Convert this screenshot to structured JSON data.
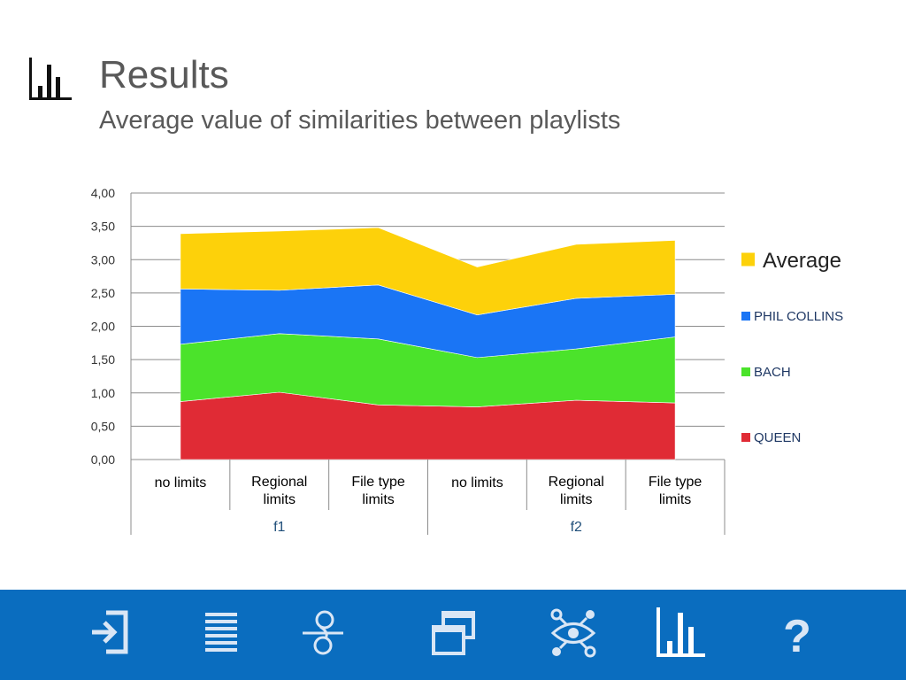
{
  "header": {
    "title": "Results",
    "subtitle": "Average value of similarities between playlists",
    "icon": "bar-chart-icon"
  },
  "chart_data": {
    "type": "area",
    "stacked": true,
    "title": "",
    "xlabel": "",
    "ylabel": "",
    "ylim": [
      0,
      4
    ],
    "yticks": [
      "0,00",
      "0,50",
      "1,00",
      "1,50",
      "2,00",
      "2,50",
      "3,00",
      "3,50",
      "4,00"
    ],
    "categories": [
      "no limits",
      "Regional limits",
      "File type limits",
      "no limits",
      "Regional limits",
      "File type limits"
    ],
    "category_lines": [
      [
        "no limits"
      ],
      [
        "Regional",
        "limits"
      ],
      [
        "File type",
        "limits"
      ],
      [
        "no limits"
      ],
      [
        "Regional",
        "limits"
      ],
      [
        "File type",
        "limits"
      ]
    ],
    "groups": [
      {
        "label": "f1",
        "categories": [
          0,
          1,
          2
        ]
      },
      {
        "label": "f2",
        "categories": [
          3,
          4,
          5
        ]
      }
    ],
    "grid": true,
    "legend_position": "right",
    "series": [
      {
        "name": "QUEEN",
        "color": "#e02b35",
        "values": [
          0.87,
          1.01,
          0.82,
          0.79,
          0.89,
          0.85
        ]
      },
      {
        "name": "BACH",
        "color": "#4be32b",
        "values": [
          0.86,
          0.88,
          0.99,
          0.74,
          0.77,
          0.99
        ]
      },
      {
        "name": "PHIL COLLINS",
        "color": "#1a75f5",
        "values": [
          0.83,
          0.65,
          0.81,
          0.64,
          0.76,
          0.64
        ]
      },
      {
        "name": "Average",
        "color": "#fdd10a",
        "values": [
          0.83,
          0.89,
          0.86,
          0.72,
          0.81,
          0.81
        ]
      }
    ]
  },
  "footer": {
    "background": "#0a6dbf",
    "icons": [
      "login-icon",
      "list-icon",
      "filter-icon",
      "windows-icon",
      "network-eye-icon",
      "bar-chart-icon",
      "help-icon"
    ],
    "help_label": "?"
  }
}
